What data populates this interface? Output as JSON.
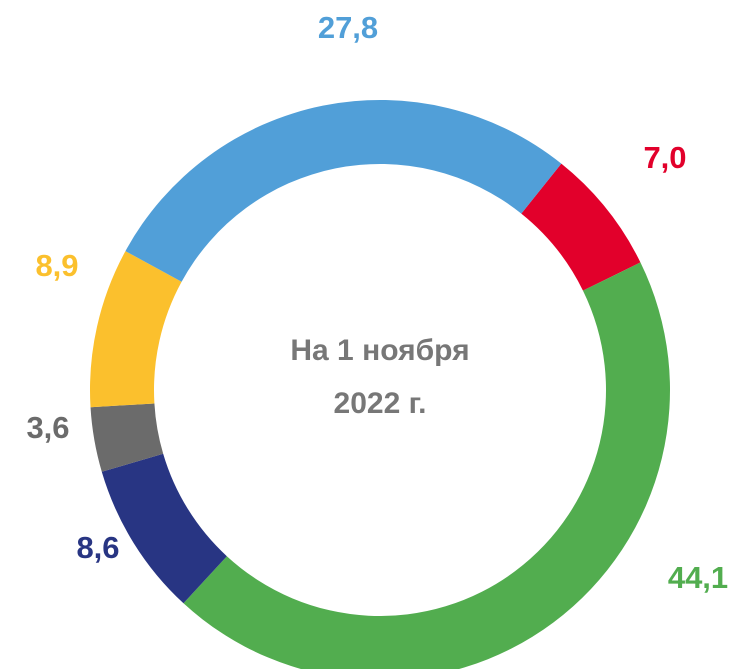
{
  "chart_data": {
    "type": "donut",
    "categories": [
      null,
      null,
      null,
      null,
      null,
      null
    ],
    "values": [
      7.0,
      44.1,
      8.6,
      3.6,
      8.9,
      27.8
    ],
    "value_labels": [
      "7,0",
      "44,1",
      "8,6",
      "3,6",
      "8,9",
      "27,8"
    ],
    "colors": [
      "#e2002b",
      "#52ad4f",
      "#283583",
      "#6b6b6b",
      "#fbc02d",
      "#519fd8"
    ],
    "annotations": [
      "На 1 ноября",
      "2022 г."
    ]
  }
}
